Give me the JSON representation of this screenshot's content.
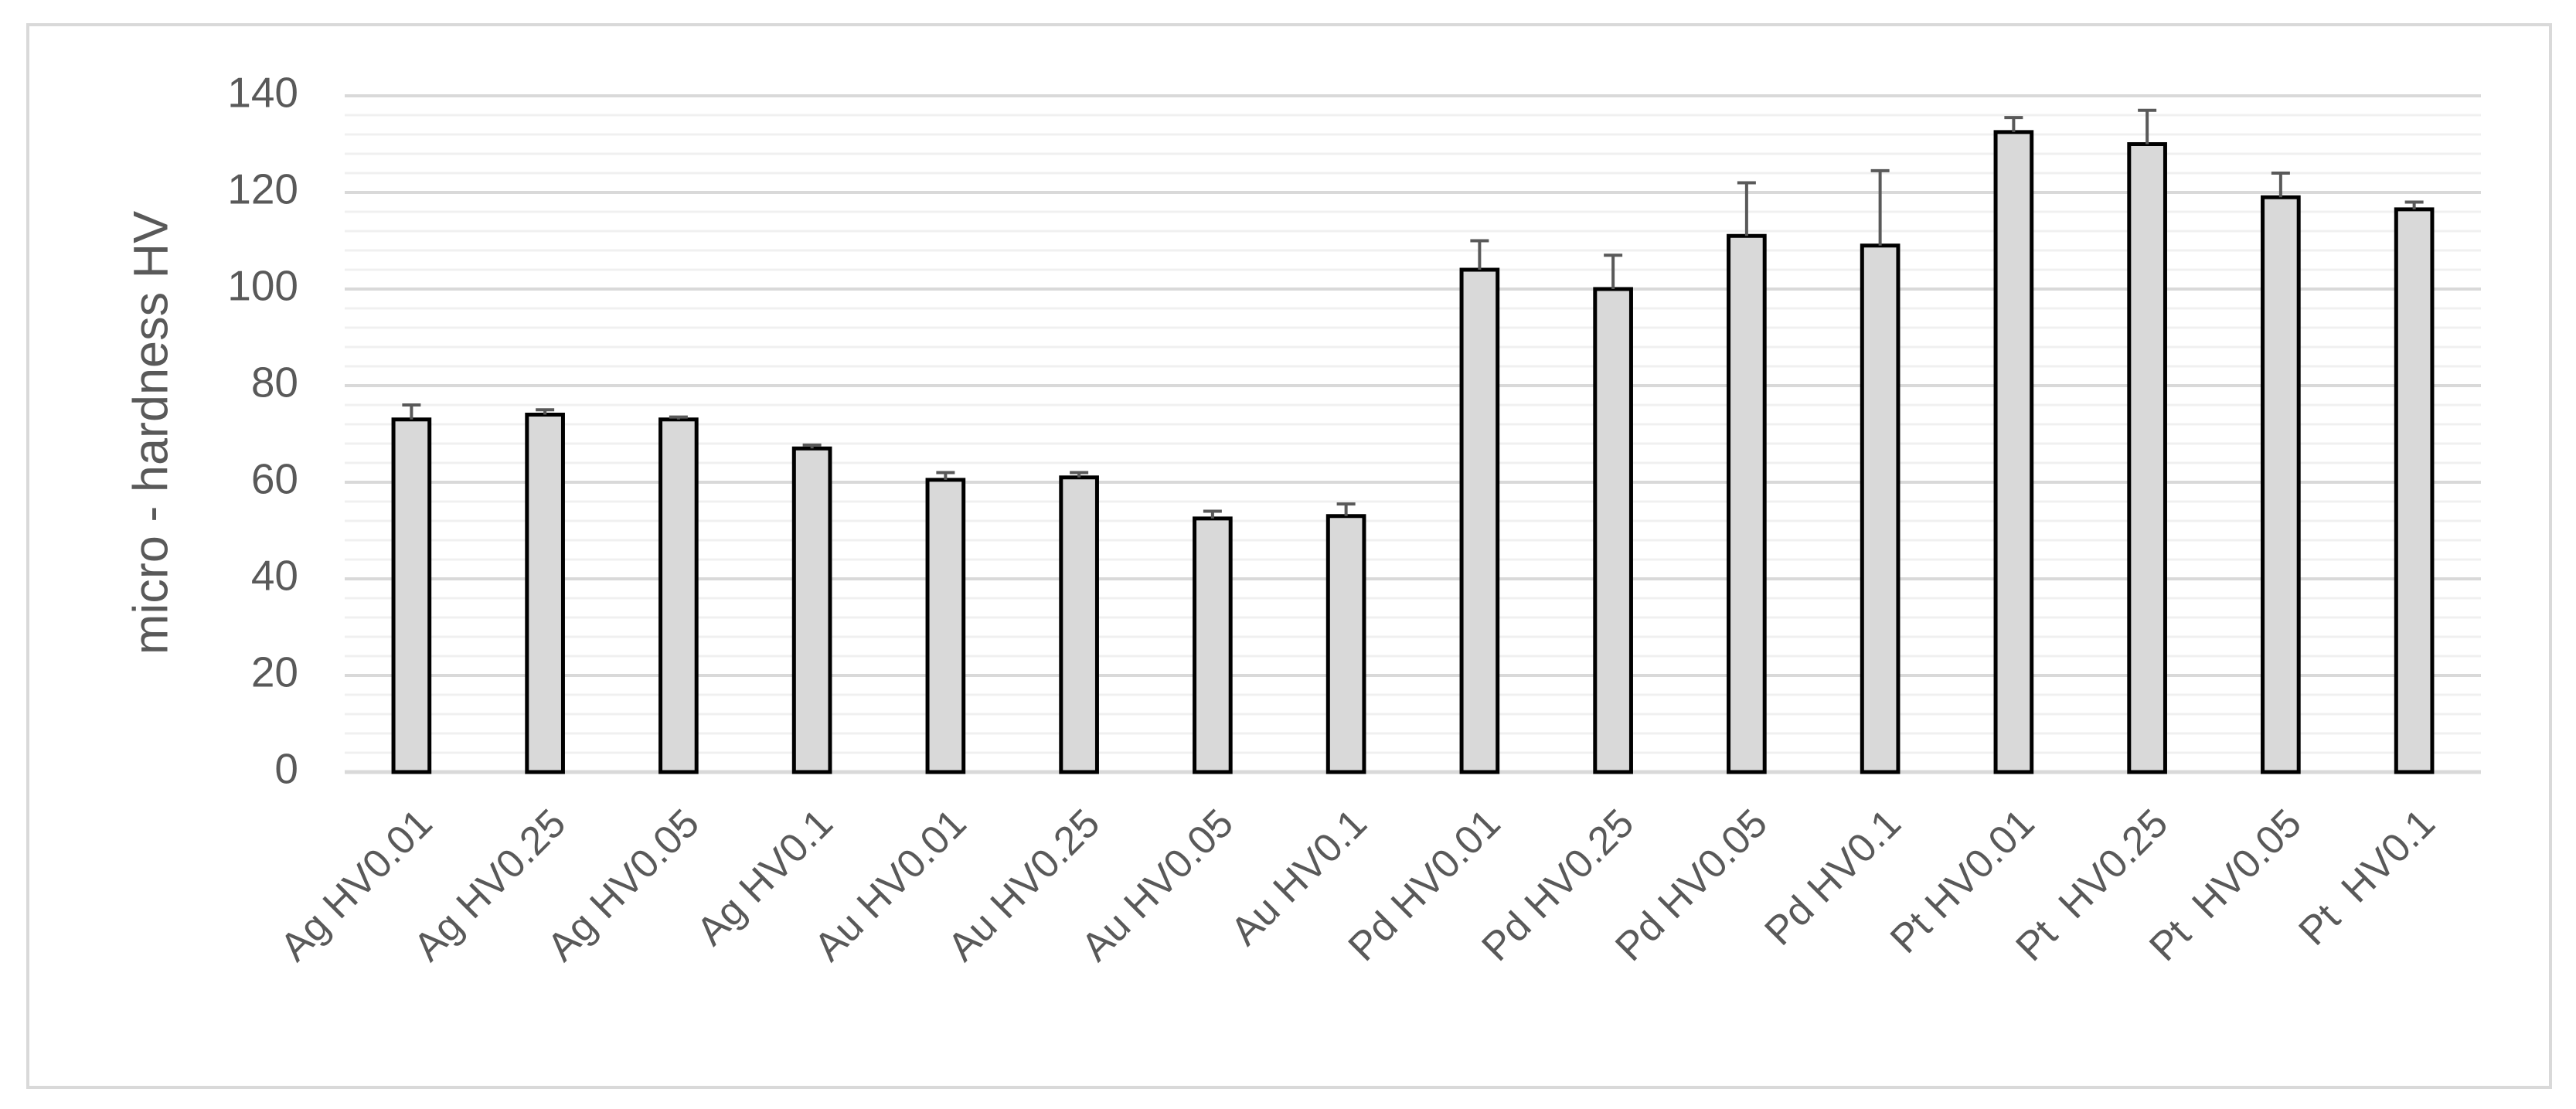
{
  "chart_data": {
    "type": "bar",
    "y_label": "micro - hardness HV",
    "categories": [
      "Ag HV0.01",
      "Ag HV0.25",
      "Ag HV0.05",
      "Ag HV0.1",
      "Au HV0.01",
      "Au HV0.25",
      "Au HV0.05",
      "Au HV0.1",
      "Pd HV0.01",
      "Pd HV0.25",
      "Pd HV0.05",
      "Pd HV0.1",
      "Pt HV0.01",
      "Pt  HV0.25",
      "Pt  HV0.05",
      "Pt  HV0.1"
    ],
    "values": [
      73,
      74,
      73,
      67,
      60.5,
      61,
      52.5,
      53,
      104,
      100,
      111,
      109,
      132.5,
      130,
      119,
      116.5
    ],
    "errors": [
      3,
      1,
      0.5,
      0.7,
      1.5,
      1,
      1.5,
      2.5,
      6,
      7,
      11,
      15.5,
      3,
      7,
      5,
      1.5
    ],
    "color": "#d9d9d9",
    "edge_color": "#000000",
    "error_color": "#595959",
    "ylim": [
      0,
      140
    ],
    "yticks": [
      0,
      20,
      40,
      60,
      80,
      100,
      120,
      140
    ],
    "grid": true,
    "minor_grid": true
  }
}
